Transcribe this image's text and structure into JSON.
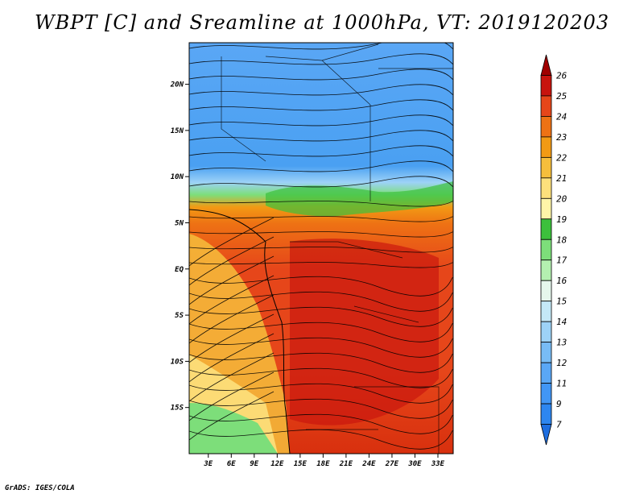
{
  "title": "WBPT [C] and Sreamline at 1000hPa, VT: 2019120203",
  "credit": "GrADS: IGES/COLA",
  "map": {
    "lat_labels": [
      "20N",
      "15N",
      "10N",
      "5N",
      "EQ",
      "5S",
      "10S",
      "15S"
    ],
    "lat_values": [
      20,
      15,
      10,
      5,
      0,
      -5,
      -10,
      -15
    ],
    "lon_labels": [
      "3E",
      "6E",
      "9E",
      "12E",
      "15E",
      "18E",
      "21E",
      "24E",
      "27E",
      "30E",
      "33E"
    ],
    "lon_values": [
      3,
      6,
      9,
      12,
      15,
      18,
      21,
      24,
      27,
      30,
      33
    ],
    "lat_range": [
      -20,
      24.5
    ],
    "lon_range": [
      0.5,
      35
    ]
  },
  "colorbar": {
    "levels": [
      "7",
      "9",
      "11",
      "12",
      "13",
      "14",
      "15",
      "16",
      "17",
      "18",
      "19",
      "20",
      "21",
      "22",
      "23",
      "24",
      "25",
      "26"
    ],
    "colors": [
      "#1e6ee0",
      "#2d86f0",
      "#4196f5",
      "#5aa7f5",
      "#78bcf5",
      "#9dd2f7",
      "#c4e8f7",
      "#e6f7ec",
      "#b4f0b0",
      "#7dde7a",
      "#3cc03c",
      "#fff5a8",
      "#fde07c",
      "#f6be3c",
      "#f29a14",
      "#ee7214",
      "#e6461a",
      "#c8140e",
      "#a00000"
    ]
  }
}
